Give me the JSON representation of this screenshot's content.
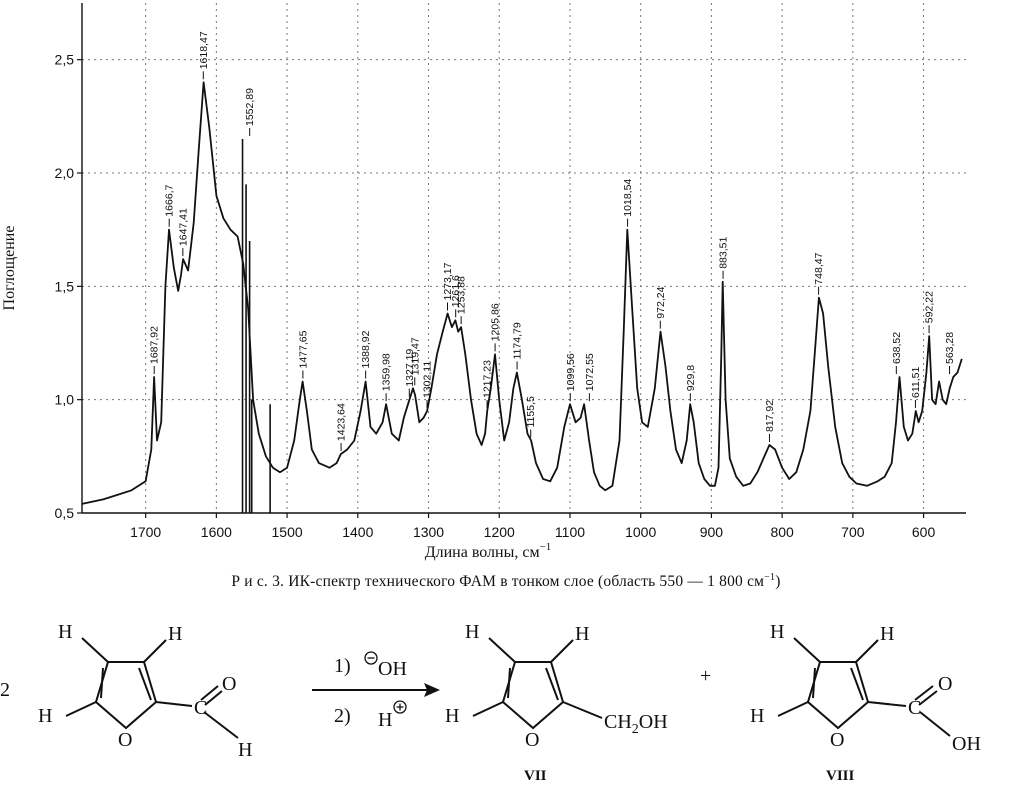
{
  "chart_data": {
    "type": "line",
    "xlabel": "Длина волны, см",
    "xlabel_sup": "−1",
    "ylabel": "Поглощение",
    "xlim": [
      1790,
      540
    ],
    "ylim": [
      0.5,
      2.75
    ],
    "x_ticks": [
      "1700",
      "1600",
      "1500",
      "1400",
      "1300",
      "1200",
      "1100",
      "1000",
      "900",
      "800",
      "700",
      "600"
    ],
    "y_ticks": [
      "0,5",
      "1,0",
      "1,5",
      "2,0",
      "2,5"
    ],
    "grid": true,
    "series": [
      {
        "x": [
          1790,
          1760,
          1740,
          1720,
          1700,
          1692,
          1688,
          1684,
          1678,
          1672,
          1667,
          1660,
          1654,
          1650,
          1647,
          1640,
          1632,
          1625,
          1618,
          1610,
          1600,
          1590,
          1580,
          1570,
          1562,
          1555,
          1548,
          1540,
          1530,
          1520,
          1510,
          1500,
          1490,
          1482,
          1478,
          1472,
          1465,
          1455,
          1440,
          1430,
          1424,
          1415,
          1405,
          1396,
          1389,
          1382,
          1374,
          1365,
          1360,
          1352,
          1342,
          1335,
          1327,
          1322,
          1319,
          1313,
          1307,
          1302,
          1296,
          1288,
          1280,
          1273,
          1267,
          1262,
          1258,
          1254,
          1248,
          1240,
          1232,
          1225,
          1220,
          1217,
          1212,
          1206,
          1200,
          1193,
          1186,
          1180,
          1175,
          1168,
          1160,
          1155,
          1148,
          1138,
          1128,
          1118,
          1108,
          1100,
          1092,
          1085,
          1080,
          1073,
          1066,
          1058,
          1050,
          1040,
          1030,
          1024,
          1019,
          1012,
          1005,
          998,
          990,
          980,
          972,
          965,
          958,
          950,
          942,
          935,
          930,
          925,
          918,
          910,
          902,
          895,
          890,
          886,
          884,
          880,
          874,
          865,
          855,
          845,
          835,
          825,
          818,
          810,
          800,
          790,
          780,
          770,
          760,
          754,
          748,
          742,
          735,
          725,
          715,
          705,
          695,
          680,
          665,
          655,
          645,
          639,
          634,
          628,
          622,
          616,
          611,
          607,
          602,
          596,
          592,
          588,
          583,
          578,
          573,
          568,
          563,
          558,
          552,
          546
        ],
        "y": [
          0.54,
          0.56,
          0.58,
          0.6,
          0.64,
          0.78,
          1.1,
          0.82,
          0.9,
          1.5,
          1.75,
          1.58,
          1.48,
          1.55,
          1.62,
          1.57,
          1.78,
          2.1,
          2.4,
          2.2,
          1.9,
          1.8,
          1.75,
          1.72,
          1.6,
          1.4,
          1.0,
          0.85,
          0.75,
          0.7,
          0.68,
          0.7,
          0.82,
          1.0,
          1.08,
          0.95,
          0.78,
          0.72,
          0.7,
          0.72,
          0.76,
          0.78,
          0.82,
          0.95,
          1.08,
          0.88,
          0.85,
          0.9,
          0.98,
          0.85,
          0.82,
          0.92,
          1.0,
          1.05,
          1.02,
          0.9,
          0.92,
          0.95,
          1.05,
          1.2,
          1.3,
          1.38,
          1.32,
          1.35,
          1.3,
          1.32,
          1.2,
          1.0,
          0.85,
          0.8,
          0.85,
          0.95,
          1.05,
          1.2,
          1.0,
          0.82,
          0.9,
          1.05,
          1.12,
          1.0,
          0.85,
          0.82,
          0.72,
          0.65,
          0.64,
          0.7,
          0.88,
          0.98,
          0.9,
          0.92,
          0.98,
          0.82,
          0.68,
          0.62,
          0.6,
          0.62,
          0.82,
          1.3,
          1.75,
          1.4,
          1.05,
          0.9,
          0.88,
          1.05,
          1.3,
          1.15,
          0.95,
          0.78,
          0.72,
          0.82,
          0.98,
          0.9,
          0.72,
          0.65,
          0.62,
          0.62,
          0.7,
          1.2,
          1.52,
          1.0,
          0.74,
          0.66,
          0.62,
          0.63,
          0.68,
          0.75,
          0.8,
          0.78,
          0.7,
          0.65,
          0.68,
          0.78,
          0.95,
          1.2,
          1.45,
          1.38,
          1.15,
          0.88,
          0.72,
          0.66,
          0.63,
          0.62,
          0.64,
          0.66,
          0.72,
          0.9,
          1.1,
          0.88,
          0.82,
          0.85,
          0.95,
          0.9,
          0.95,
          1.12,
          1.28,
          1.0,
          0.98,
          1.08,
          1.0,
          0.98,
          1.05,
          1.1,
          1.12,
          1.18
        ],
        "spikes": [
          {
            "x": 1563,
            "top": 2.15
          },
          {
            "x": 1558,
            "top": 1.95
          },
          {
            "x": 1553,
            "top": 1.7
          },
          {
            "x": 1550,
            "top": 1.0
          },
          {
            "x": 1524,
            "top": 0.98
          }
        ]
      }
    ],
    "peaks": [
      {
        "x": 1687.92,
        "y": 1.1,
        "label": "1687,92"
      },
      {
        "x": 1666.7,
        "y": 1.75,
        "label": "1666,7"
      },
      {
        "x": 1647.41,
        "y": 1.62,
        "label": "1647,41"
      },
      {
        "x": 1618.47,
        "y": 2.4,
        "label": "1618,47"
      },
      {
        "x": 1552.89,
        "y": 2.15,
        "label": "1552,89"
      },
      {
        "x": 1477.65,
        "y": 1.08,
        "label": "1477,65"
      },
      {
        "x": 1423.64,
        "y": 0.76,
        "label": "1423,64"
      },
      {
        "x": 1388.92,
        "y": 1.08,
        "label": "1388,92"
      },
      {
        "x": 1359.98,
        "y": 0.98,
        "label": "1359,98"
      },
      {
        "x": 1327.19,
        "y": 1.0,
        "label": "1327,19"
      },
      {
        "x": 1319.47,
        "y": 1.05,
        "label": "1319,47"
      },
      {
        "x": 1302.11,
        "y": 0.95,
        "label": "1302,11"
      },
      {
        "x": 1273.17,
        "y": 1.38,
        "label": "1273,17"
      },
      {
        "x": 1261.6,
        "y": 1.35,
        "label": "1261,6"
      },
      {
        "x": 1253.88,
        "y": 1.32,
        "label": "1253,88"
      },
      {
        "x": 1217.23,
        "y": 0.95,
        "label": "1217,23"
      },
      {
        "x": 1205.86,
        "y": 1.2,
        "label": "1205,86"
      },
      {
        "x": 1174.79,
        "y": 1.12,
        "label": "1174,79"
      },
      {
        "x": 1155.5,
        "y": 0.82,
        "label": "1155,5"
      },
      {
        "x": 1099.56,
        "y": 0.98,
        "label": "1099,56"
      },
      {
        "x": 1072.55,
        "y": 0.98,
        "label": "1072,55"
      },
      {
        "x": 1018.54,
        "y": 1.75,
        "label": "1018,54"
      },
      {
        "x": 972.24,
        "y": 1.3,
        "label": "972,24"
      },
      {
        "x": 929.8,
        "y": 0.98,
        "label": "929,8"
      },
      {
        "x": 883.51,
        "y": 1.52,
        "label": "883,51"
      },
      {
        "x": 817.92,
        "y": 0.8,
        "label": "817,92"
      },
      {
        "x": 748.47,
        "y": 1.45,
        "label": "748,47"
      },
      {
        "x": 638.52,
        "y": 1.1,
        "label": "638,52"
      },
      {
        "x": 611.51,
        "y": 0.95,
        "label": "611,51"
      },
      {
        "x": 592.22,
        "y": 1.28,
        "label": "592,22"
      },
      {
        "x": 563.28,
        "y": 1.1,
        "label": "563,28"
      }
    ]
  },
  "figure": {
    "caption_lead": "Р и с. 3.",
    "caption_text": "ИК-спектр технического ФАМ в тонком слое (область 550 — 1 800 см",
    "caption_sup": "−1",
    "caption_tail": ")"
  },
  "scheme": {
    "coefficient": "2",
    "atom_H": "H",
    "atom_O": "O",
    "atom_C": "C",
    "oh": "OH",
    "ch2oh_a": "CH",
    "ch2oh_sub": "2",
    "ch2oh_b": "OH",
    "step1": "1)",
    "step2": "2)",
    "hydroxide": "OH",
    "proton": "H",
    "plus": "+",
    "compound_vii": "VII",
    "compound_viii": "VIII"
  }
}
